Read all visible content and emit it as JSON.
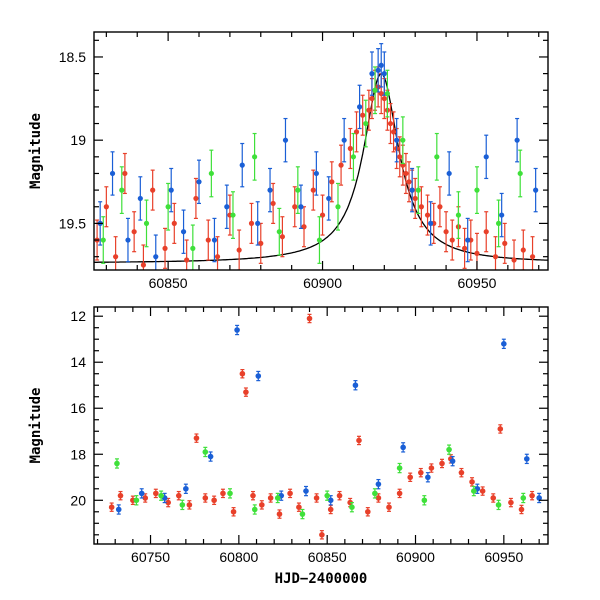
{
  "chart_data": [
    {
      "type": "scatter",
      "panel": "top",
      "title": "",
      "xlabel": "",
      "ylabel": "Magnitude",
      "xlim": [
        60826,
        60973
      ],
      "ylim": [
        19.78,
        18.35
      ],
      "y_inverted": true,
      "grid": false,
      "x_ticks": [
        60850,
        60900,
        60950
      ],
      "x_tick_labels": [
        "60850",
        "60900",
        "60950"
      ],
      "y_ticks": [
        18.5,
        19,
        19.5
      ],
      "y_tick_labels": [
        "18.5",
        "19",
        "19.5"
      ],
      "series": [
        {
          "name": "red",
          "color": "#e8402a",
          "x": [
            60827,
            60830,
            60833,
            60836,
            60839,
            60842,
            60845,
            60849,
            60852,
            60856,
            60859,
            60863,
            60866,
            60870,
            60873,
            60877,
            60880,
            60884,
            60887,
            60891,
            60894,
            60897,
            60900,
            60903,
            60906,
            60909,
            60911,
            60913,
            60915,
            60916,
            60917,
            60918,
            60919,
            60920,
            60921,
            60922,
            60923,
            60924,
            60925,
            60926,
            60927,
            60928,
            60929,
            60930,
            60932,
            60934,
            60936,
            60938,
            60940,
            60942,
            60944,
            60946,
            60948,
            60950,
            60953,
            60956,
            60959,
            60962,
            60965,
            60968
          ],
          "y": [
            19.6,
            19.4,
            19.7,
            19.2,
            19.55,
            19.75,
            19.3,
            19.65,
            19.5,
            19.72,
            19.35,
            19.6,
            19.7,
            19.45,
            19.66,
            19.5,
            19.62,
            19.38,
            19.58,
            19.4,
            19.52,
            19.3,
            19.45,
            19.25,
            19.15,
            19.05,
            18.95,
            18.85,
            18.82,
            18.75,
            18.7,
            18.68,
            18.72,
            18.75,
            18.82,
            18.9,
            18.95,
            19.05,
            19.1,
            19.15,
            19.2,
            19.25,
            19.3,
            19.35,
            19.4,
            19.45,
            19.5,
            19.4,
            19.55,
            19.6,
            19.52,
            19.65,
            19.6,
            19.68,
            19.55,
            19.7,
            19.62,
            19.72,
            19.66,
            19.7
          ],
          "err": 0.12
        },
        {
          "name": "blue",
          "color": "#1a5fd6",
          "x": [
            60828,
            60832,
            60837,
            60841,
            60846,
            60851,
            60855,
            60860,
            60865,
            60869,
            60874,
            60879,
            60883,
            60888,
            60893,
            60898,
            60902,
            60907,
            60912,
            60916,
            60918,
            60919,
            60920,
            60924,
            60929,
            60935,
            60941,
            60947,
            60953,
            60958,
            60963,
            60969
          ],
          "y": [
            19.5,
            19.2,
            19.6,
            19.35,
            19.7,
            19.3,
            19.55,
            19.25,
            19.6,
            19.4,
            19.15,
            19.5,
            19.3,
            19.0,
            19.4,
            19.2,
            19.35,
            19.0,
            18.8,
            18.6,
            18.58,
            18.55,
            18.6,
            19.0,
            19.3,
            19.5,
            19.2,
            19.6,
            19.1,
            19.45,
            19.0,
            19.3
          ],
          "err": 0.13
        },
        {
          "name": "green",
          "color": "#3fe03a",
          "x": [
            60829,
            60835,
            60843,
            60850,
            60858,
            60864,
            60871,
            60878,
            60886,
            60892,
            60899,
            60905,
            60910,
            60914,
            60917,
            60921,
            60926,
            60931,
            60937,
            60944,
            60950,
            60957,
            60964
          ],
          "y": [
            19.6,
            19.3,
            19.5,
            19.4,
            19.65,
            19.2,
            19.45,
            19.1,
            19.55,
            19.3,
            19.6,
            19.4,
            19.1,
            18.9,
            18.7,
            18.72,
            19.0,
            19.3,
            19.1,
            19.45,
            19.3,
            19.5,
            19.2
          ],
          "err": 0.14
        }
      ],
      "fit_curve": {
        "name": "model",
        "color": "#000000",
        "peak_time": 60919,
        "peak_mag": 18.6,
        "base_mag": 19.74,
        "width": 7
      }
    },
    {
      "type": "scatter",
      "panel": "bottom",
      "title": "",
      "xlabel": "HJD−2400000",
      "ylabel": "Magnitude",
      "xlim": [
        60718,
        60975
      ],
      "ylim": [
        21.9,
        11.6
      ],
      "y_inverted": true,
      "grid": false,
      "x_ticks": [
        60750,
        60800,
        60850,
        60900,
        60950
      ],
      "x_tick_labels": [
        "60750",
        "60800",
        "60850",
        "60900",
        "60950"
      ],
      "y_ticks": [
        12,
        14,
        16,
        18,
        20
      ],
      "y_tick_labels": [
        "12",
        "14",
        "16",
        "18",
        "20"
      ],
      "series": [
        {
          "name": "red",
          "color": "#e8402a",
          "x": [
            60728,
            60733,
            60740,
            60747,
            60753,
            60760,
            60766,
            60772,
            60776,
            60781,
            60786,
            60791,
            60797,
            60802,
            60804,
            60808,
            60813,
            60818,
            60823,
            60829,
            60834,
            60840,
            60844,
            60847,
            60852,
            60857,
            60863,
            60868,
            60873,
            60879,
            60885,
            60891,
            60897,
            60903,
            60909,
            60915,
            60920,
            60926,
            60932,
            60938,
            60944,
            60948,
            60954,
            60960,
            60966
          ],
          "y": [
            20.3,
            19.8,
            20.0,
            19.9,
            19.7,
            20.1,
            19.8,
            20.2,
            17.3,
            19.9,
            20.0,
            19.7,
            20.5,
            14.5,
            15.3,
            19.8,
            20.2,
            19.9,
            20.6,
            19.7,
            20.3,
            12.1,
            19.9,
            21.5,
            20.4,
            19.8,
            20.1,
            17.4,
            20.5,
            19.9,
            20.3,
            19.7,
            19.0,
            18.8,
            18.6,
            18.4,
            18.2,
            18.8,
            19.2,
            19.6,
            19.9,
            16.9,
            20.1,
            20.4,
            19.8
          ],
          "err": 0.18
        },
        {
          "name": "blue",
          "color": "#1a5fd6",
          "x": [
            60732,
            60745,
            60758,
            60770,
            60784,
            60799,
            60811,
            60824,
            60838,
            60852,
            60866,
            60879,
            60893,
            60907,
            60921,
            60935,
            60950,
            60963,
            60970
          ],
          "y": [
            20.4,
            19.7,
            19.9,
            19.5,
            18.1,
            12.6,
            14.6,
            19.8,
            19.6,
            20.0,
            15.0,
            19.3,
            17.7,
            19.0,
            18.3,
            19.5,
            13.2,
            18.2,
            19.9
          ],
          "err": 0.2
        },
        {
          "name": "green",
          "color": "#3fe03a",
          "x": [
            60731,
            60742,
            60756,
            60768,
            60781,
            60795,
            60809,
            60822,
            60836,
            60850,
            60864,
            60877,
            60891,
            60905,
            60919,
            60933,
            60947,
            60961
          ],
          "y": [
            18.4,
            20.0,
            19.8,
            20.2,
            17.9,
            19.7,
            20.4,
            19.9,
            20.6,
            19.8,
            20.3,
            19.7,
            18.6,
            20.0,
            17.8,
            19.6,
            20.2,
            19.9
          ],
          "err": 0.2
        }
      ]
    }
  ]
}
